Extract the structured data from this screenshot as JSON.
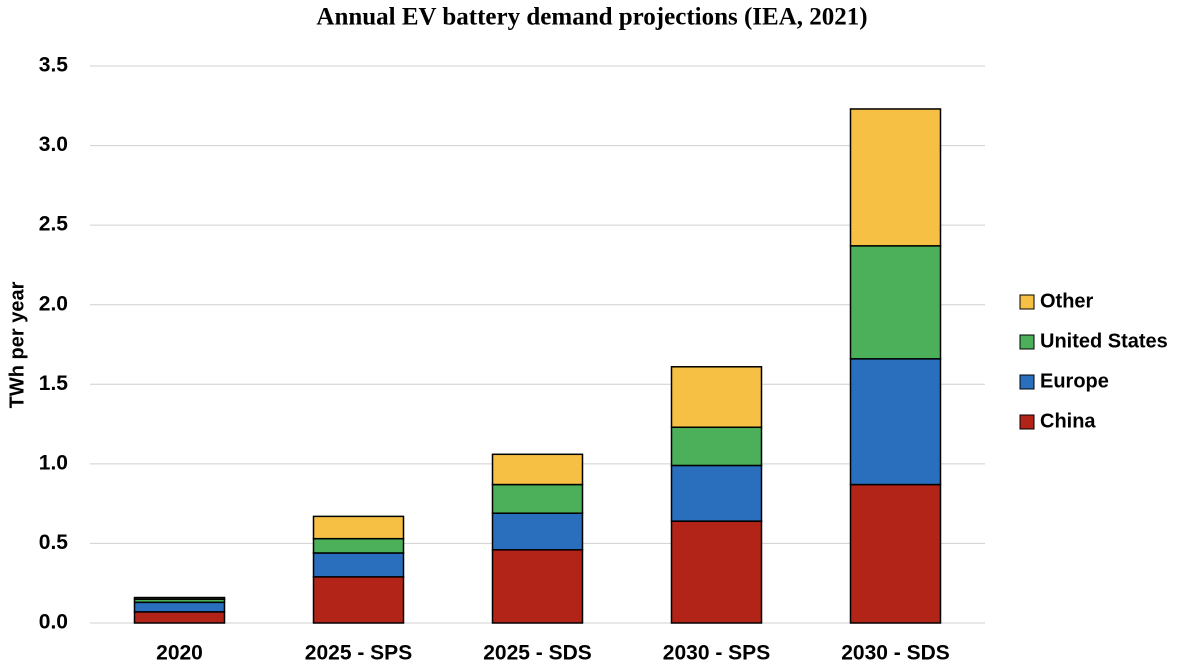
{
  "chart_data": {
    "type": "stacked_bar",
    "title": "Annual EV battery demand projections (IEA, 2021)",
    "y_label": "TWh per year",
    "categories": [
      "2020",
      "2025 - SPS",
      "2025 - SDS",
      "2030 - SPS",
      "2030 - SDS"
    ],
    "series": [
      {
        "name": "China",
        "color": "#b22418",
        "values": [
          0.07,
          0.29,
          0.46,
          0.64,
          0.87
        ]
      },
      {
        "name": "Europe",
        "color": "#2a6fbe",
        "values": [
          0.06,
          0.15,
          0.23,
          0.35,
          0.79
        ]
      },
      {
        "name": "United States",
        "color": "#4caf5a",
        "values": [
          0.02,
          0.09,
          0.18,
          0.24,
          0.71
        ]
      },
      {
        "name": "Other",
        "color": "#f5c044",
        "values": [
          0.01,
          0.14,
          0.19,
          0.38,
          0.86
        ]
      }
    ],
    "ylim": [
      0,
      3.5
    ],
    "yticks": [
      {
        "value": 0,
        "label": "0.0"
      },
      0.5,
      {
        "value": 1,
        "label": "1.0"
      },
      1.5,
      {
        "value": 2,
        "label": "2.0"
      },
      2.5,
      {
        "value": 3,
        "label": "3.0"
      },
      3.5
    ],
    "grid": true,
    "legend": "right"
  }
}
